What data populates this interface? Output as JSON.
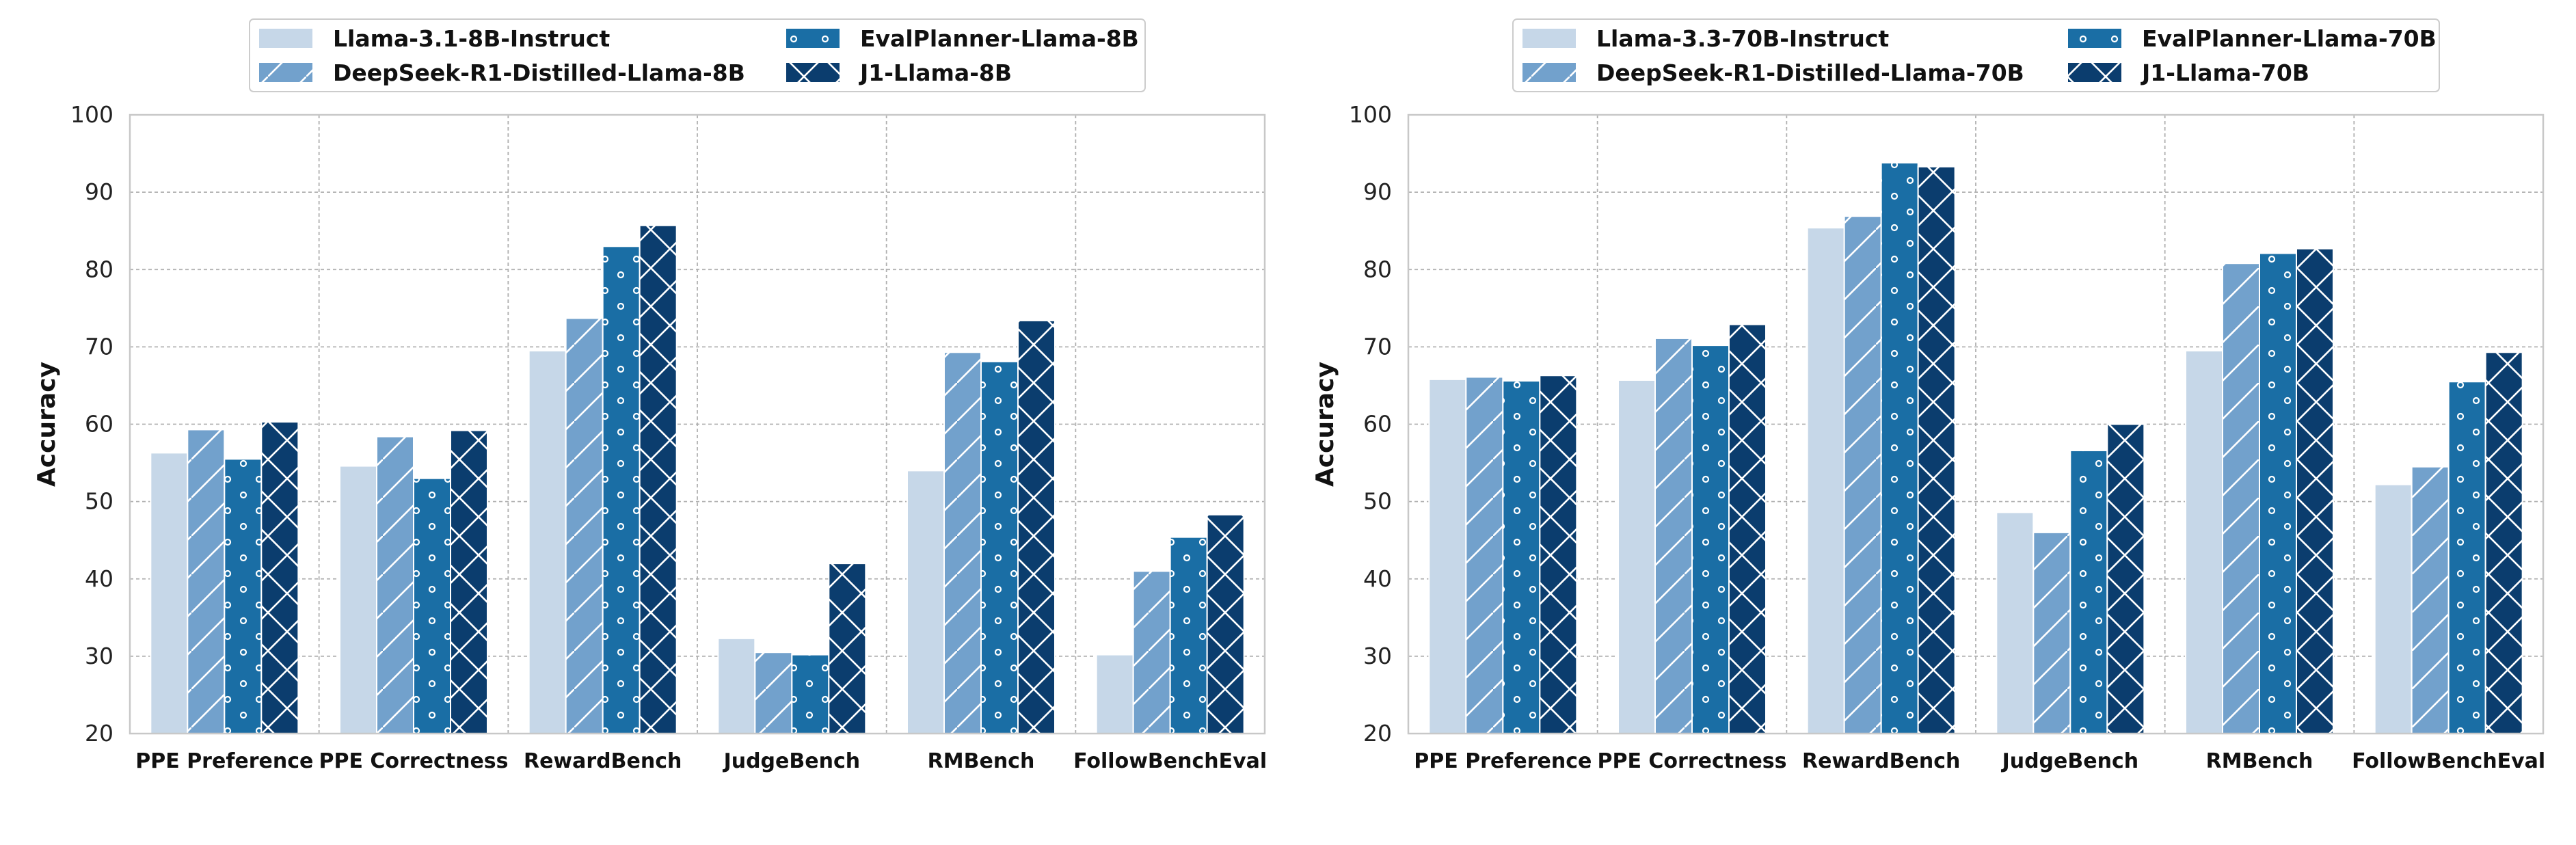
{
  "colors": [
    "#c6d7e8",
    "#72a1cc",
    "#1a6ea5",
    "#0b3d6e"
  ],
  "hatches": [
    "none",
    "diag",
    "dots",
    "cross"
  ],
  "chart_data": [
    {
      "type": "bar",
      "categories": [
        "PPE Preference",
        "PPE Correctness",
        "RewardBench",
        "JudgeBench",
        "RMBench",
        "FollowBenchEval"
      ],
      "ylabel": "Accuracy",
      "ylim": [
        20,
        100
      ],
      "yticks": [
        20,
        30,
        40,
        50,
        60,
        70,
        80,
        90,
        100
      ],
      "grid": true,
      "legend_position": "top-center",
      "series": [
        {
          "name": "Llama-3.1-8B-Instruct",
          "values": [
            56.3,
            54.6,
            69.5,
            32.3,
            54.0,
            30.2
          ]
        },
        {
          "name": "DeepSeek-R1-Distilled-Llama-8B",
          "values": [
            59.3,
            58.4,
            73.7,
            30.5,
            69.3,
            41.0
          ]
        },
        {
          "name": "EvalPlanner-Llama-8B",
          "values": [
            55.5,
            53.0,
            83.0,
            30.2,
            68.1,
            45.4
          ]
        },
        {
          "name": "J1-Llama-8B",
          "values": [
            60.3,
            59.2,
            85.7,
            42.0,
            73.4,
            48.3
          ]
        }
      ]
    },
    {
      "type": "bar",
      "categories": [
        "PPE Preference",
        "PPE Correctness",
        "RewardBench",
        "JudgeBench",
        "RMBench",
        "FollowBenchEval"
      ],
      "ylabel": "Accuracy",
      "ylim": [
        20,
        100
      ],
      "yticks": [
        20,
        30,
        40,
        50,
        60,
        70,
        80,
        90,
        100
      ],
      "grid": true,
      "legend_position": "top-center",
      "series": [
        {
          "name": "Llama-3.3-70B-Instruct",
          "values": [
            65.8,
            65.7,
            85.4,
            48.6,
            69.5,
            52.2
          ]
        },
        {
          "name": "DeepSeek-R1-Distilled-Llama-70B",
          "values": [
            66.1,
            71.1,
            86.9,
            46.0,
            80.8,
            54.5
          ]
        },
        {
          "name": "EvalPlanner-Llama-70B",
          "values": [
            65.6,
            70.2,
            93.8,
            56.6,
            82.1,
            65.5
          ]
        },
        {
          "name": "J1-Llama-70B",
          "values": [
            66.3,
            72.9,
            93.3,
            60.0,
            82.7,
            69.3
          ]
        }
      ]
    }
  ]
}
